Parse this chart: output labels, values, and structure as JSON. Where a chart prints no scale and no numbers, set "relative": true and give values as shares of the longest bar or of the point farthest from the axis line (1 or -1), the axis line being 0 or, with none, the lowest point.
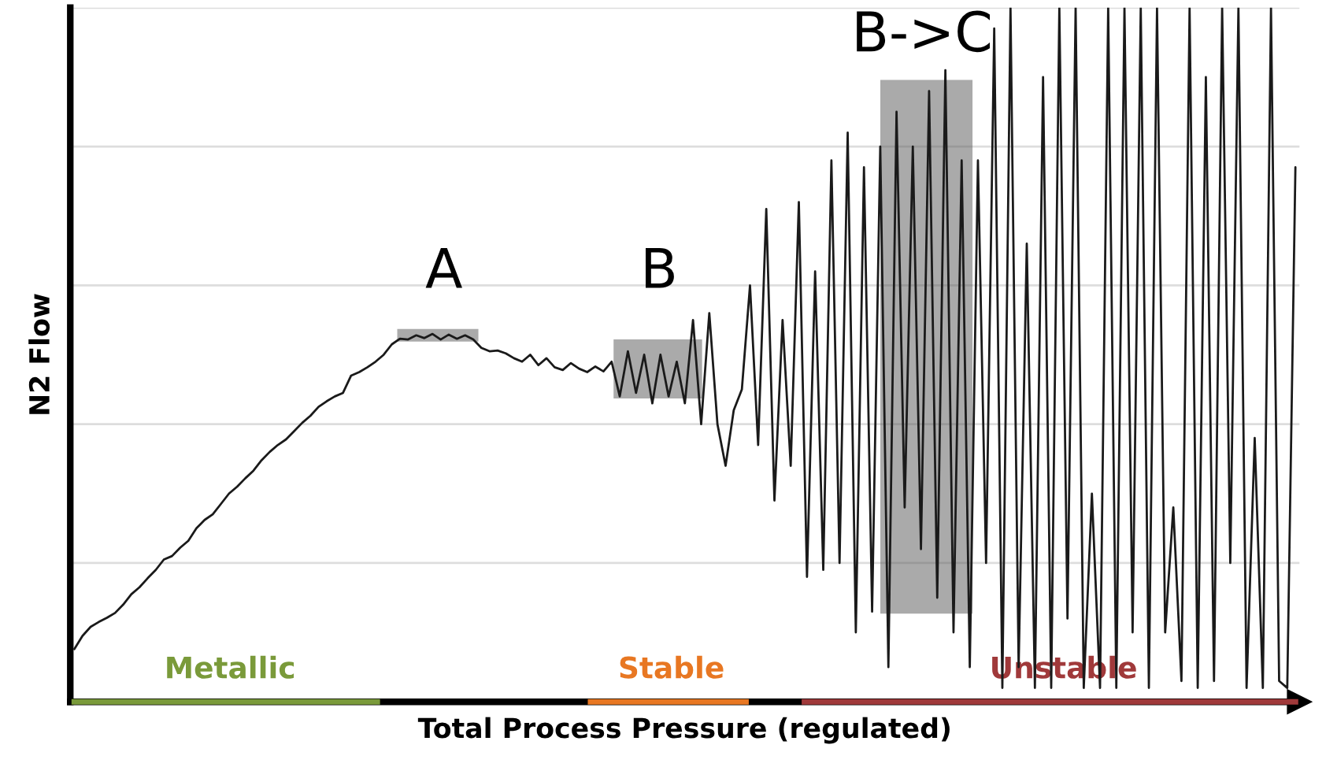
{
  "chart_data": {
    "type": "line",
    "relative": true,
    "xlabel": "Total Process Pressure (regulated)",
    "ylabel": "N2 Flow",
    "grid": "y",
    "tick_labels": false,
    "marker": "none",
    "line_style": "solid",
    "categories": [
      null,
      null,
      null,
      null,
      null,
      null,
      null,
      null,
      null,
      null,
      null,
      null,
      null,
      null,
      null,
      null,
      null,
      null,
      null,
      null,
      null,
      null,
      null,
      null,
      null,
      null,
      null,
      null,
      null,
      null,
      null,
      null,
      null,
      null,
      null,
      null,
      null,
      null,
      null,
      null,
      null,
      null,
      null,
      null,
      null,
      null,
      null,
      null,
      null,
      null,
      null,
      null,
      null,
      null,
      null,
      null,
      null,
      null,
      null,
      null,
      null,
      null,
      null,
      null,
      null,
      null,
      null,
      null,
      null,
      null,
      null,
      null,
      null,
      null,
      null,
      null,
      null,
      null,
      null,
      null,
      null,
      null,
      null,
      null,
      null,
      null,
      null,
      null,
      null,
      null,
      null,
      null,
      null,
      null,
      null,
      null,
      null,
      null,
      null,
      null,
      null,
      null,
      null,
      null,
      null,
      null,
      null,
      null,
      null,
      null,
      null,
      null,
      null,
      null,
      null,
      null,
      null,
      null,
      null,
      null,
      null,
      null,
      null,
      null,
      null,
      null,
      null,
      null,
      null,
      null,
      null,
      null,
      null,
      null,
      null,
      null,
      null,
      null,
      null,
      null,
      null,
      null,
      null,
      null,
      null,
      null,
      null,
      null,
      null,
      null,
      null
    ],
    "series": [
      {
        "color": "#1a1a1a",
        "values": [
          0.076,
          0.095,
          0.108,
          0.115,
          0.121,
          0.128,
          0.14,
          0.155,
          0.165,
          0.178,
          0.19,
          0.205,
          0.21,
          0.222,
          0.232,
          0.25,
          0.262,
          0.27,
          0.285,
          0.3,
          0.31,
          0.322,
          0.333,
          0.348,
          0.36,
          0.37,
          0.378,
          0.39,
          0.402,
          0.412,
          0.425,
          0.433,
          0.44,
          0.445,
          0.47,
          0.475,
          0.482,
          0.49,
          0.5,
          0.515,
          0.523,
          0.522,
          0.528,
          0.524,
          0.53,
          0.522,
          0.529,
          0.523,
          0.528,
          0.522,
          0.51,
          0.505,
          0.506,
          0.502,
          0.495,
          0.49,
          0.5,
          0.485,
          0.495,
          0.482,
          0.478,
          0.488,
          0.48,
          0.475,
          0.483,
          0.476,
          0.49,
          0.44,
          0.505,
          0.445,
          0.5,
          0.43,
          0.5,
          0.44,
          0.49,
          0.43,
          0.55,
          0.4,
          0.56,
          0.4,
          0.34,
          0.42,
          0.45,
          0.6,
          0.37,
          0.71,
          0.29,
          0.55,
          0.34,
          0.72,
          0.18,
          0.62,
          0.19,
          0.78,
          0.2,
          0.82,
          0.1,
          0.77,
          0.13,
          0.8,
          0.05,
          0.85,
          0.28,
          0.8,
          0.22,
          0.88,
          0.15,
          0.91,
          0.1,
          0.78,
          0.05,
          0.78,
          0.2,
          0.97,
          0.02,
          1.0,
          0.05,
          0.66,
          0.02,
          0.9,
          0.02,
          1.0,
          0.12,
          1.0,
          0.02,
          0.3,
          0.02,
          1.0,
          0.02,
          1.0,
          0.1,
          1.0,
          0.02,
          1.0,
          0.1,
          0.28,
          0.03,
          1.0,
          0.02,
          0.9,
          0.03,
          1.0,
          0.2,
          1.0,
          0.02,
          0.38,
          0.02,
          1.0,
          0.03,
          0.02,
          0.77
        ]
      }
    ],
    "annotations": [
      "A",
      "B",
      "B->C",
      "Metallic",
      "Stable",
      "Unstable"
    ]
  }
}
